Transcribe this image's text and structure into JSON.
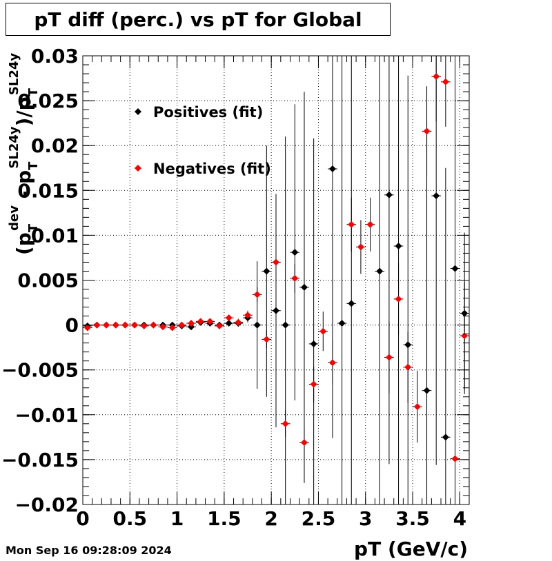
{
  "title": "pT diff (perc.) vs pT for Global",
  "timestamp": "Mon Sep 16 09:28:09 2024",
  "chart_data": {
    "type": "scatter",
    "title": "pT diff (perc.) vs pT for Global",
    "xlabel": "pT (GeV/c)",
    "ylabel": {
      "main": "(p",
      "sub1": "T",
      "sup1": "dev",
      "mid": " - p",
      "sub2": "T",
      "sup2": "SL24y",
      "mid2": ")/p",
      "sub3": "T",
      "sup3": "SL24y"
    },
    "xlim": [
      0,
      4.1
    ],
    "ylim": [
      -0.02,
      0.03
    ],
    "x_ticks": [
      "0",
      "0.5",
      "1",
      "1.5",
      "2",
      "2.5",
      "3",
      "3.5",
      "4"
    ],
    "y_ticks": [
      "0.03",
      "0.025",
      "0.02",
      "0.015",
      "0.01",
      "0.005",
      "0",
      "−0.005",
      "−0.01",
      "−0.015",
      "−0.02"
    ],
    "grid": true,
    "legend_position": "top-left",
    "series": [
      {
        "name": "Positives (fit)",
        "color": "#000000",
        "x": [
          0.05,
          0.15,
          0.25,
          0.35,
          0.45,
          0.55,
          0.65,
          0.75,
          0.85,
          0.95,
          1.05,
          1.15,
          1.25,
          1.35,
          1.45,
          1.55,
          1.65,
          1.75,
          1.85,
          1.95,
          2.05,
          2.15,
          2.25,
          2.35,
          2.45,
          2.55,
          2.65,
          2.75,
          2.85,
          2.95,
          3.05,
          3.15,
          3.25,
          3.35,
          3.45,
          3.55,
          3.65,
          3.75,
          3.85,
          3.95,
          4.05
        ],
        "y": [
          -0.0001,
          0.0,
          0.0,
          0.0,
          0.0,
          0.0,
          0.0,
          0.0,
          0.0,
          0.0,
          -0.0001,
          -0.0002,
          0.0003,
          0.0002,
          0.0,
          0.0002,
          0.0002,
          0.0008,
          0.0,
          0.006,
          0.0016,
          0.0,
          0.0081,
          0.0042,
          -0.0021,
          null,
          0.0174,
          0.0002,
          0.0024,
          null,
          null,
          0.006,
          0.0145,
          0.0088,
          -0.0022,
          null,
          -0.0073,
          0.0144,
          -0.0125,
          0.0063,
          0.0013
        ],
        "err": [
          0.0001,
          0.0001,
          0.0001,
          0.0001,
          0.0001,
          0.0001,
          0.0001,
          0.0001,
          0.0001,
          0.0001,
          0.0001,
          0.0001,
          0.0002,
          0.0002,
          0.0003,
          0.0003,
          0.0004,
          0.0005,
          0.0071,
          0.014,
          0.013,
          0.021,
          0.0165,
          0.0218,
          0.0229,
          null,
          0.03,
          0.03,
          0.03,
          null,
          null,
          0.03,
          0.03,
          0.03,
          0.03,
          null,
          0.03,
          0.03,
          0.03,
          0.03,
          0.009
        ]
      },
      {
        "name": "Negatives (fit)",
        "color": "#ff0000",
        "x": [
          0.05,
          0.15,
          0.25,
          0.35,
          0.45,
          0.55,
          0.65,
          0.75,
          0.85,
          0.95,
          1.05,
          1.15,
          1.25,
          1.35,
          1.45,
          1.55,
          1.65,
          1.75,
          1.85,
          1.95,
          2.05,
          2.15,
          2.25,
          2.35,
          2.45,
          2.55,
          2.65,
          2.75,
          2.85,
          2.95,
          3.05,
          3.15,
          3.25,
          3.35,
          3.45,
          3.55,
          3.65,
          3.75,
          3.85,
          3.95,
          4.05
        ],
        "y": [
          -0.0003,
          0.0,
          0.0,
          0.0,
          0.0,
          0.0,
          -0.0001,
          0.0,
          -0.0002,
          -0.0003,
          0.0,
          0.0002,
          0.0004,
          0.0004,
          -0.0001,
          0.0008,
          0.0003,
          0.0011,
          0.0034,
          -0.0016,
          0.007,
          -0.011,
          0.0052,
          -0.0131,
          -0.0066,
          -0.0007,
          -0.0042,
          null,
          0.0112,
          0.0087,
          0.0112,
          null,
          -0.0036,
          0.0029,
          -0.0047,
          -0.0091,
          0.0216,
          0.0277,
          0.0271,
          -0.0149,
          -0.0012
        ],
        "err": [
          0.0001,
          0.0001,
          0.0001,
          0.0001,
          0.0001,
          0.0001,
          0.0001,
          0.0001,
          0.0001,
          0.0001,
          0.0001,
          0.0001,
          0.0002,
          0.0002,
          0.0003,
          0.0003,
          0.0004,
          0.0005,
          0.0008,
          0.001,
          0.0012,
          0.0015,
          0.0016,
          0.0018,
          0.002,
          0.0022,
          0.0025,
          null,
          0.003,
          0.003,
          0.003,
          null,
          0.004,
          0.004,
          0.004,
          0.004,
          0.005,
          0.005,
          0.005,
          0.005,
          0.006
        ]
      }
    ]
  }
}
